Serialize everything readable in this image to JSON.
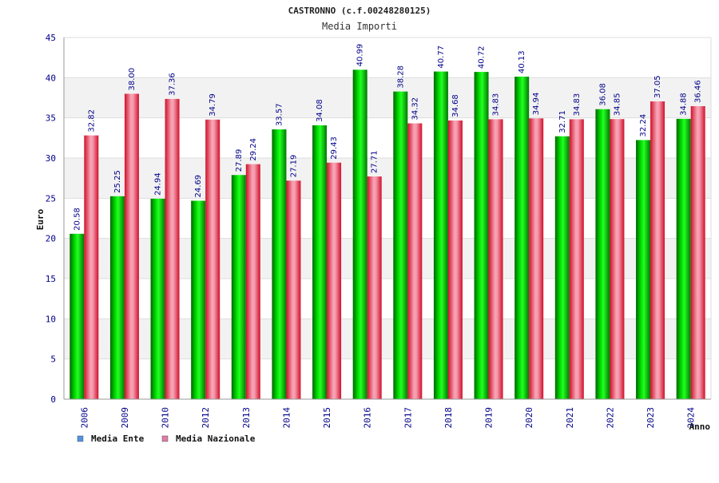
{
  "chart_data": {
    "type": "bar",
    "title": "CASTRONNO (c.f.00248280125)",
    "subtitle": "Media Importi",
    "xlabel": "Anno",
    "ylabel": "Euro",
    "ylim": [
      0,
      45
    ],
    "yticks": [
      "0",
      "5",
      "10",
      "15",
      "20",
      "25",
      "30",
      "35",
      "40",
      "45"
    ],
    "categories": [
      "2006",
      "2009",
      "2010",
      "2012",
      "2013",
      "2014",
      "2015",
      "2016",
      "2017",
      "2018",
      "2019",
      "2020",
      "2021",
      "2022",
      "2023",
      "2024"
    ],
    "series": [
      {
        "name": "Media Ente",
        "color": "#00cc00",
        "legend_color": "#4f94e0",
        "values": [
          20.58,
          25.25,
          24.94,
          24.69,
          27.89,
          33.57,
          34.08,
          40.99,
          38.28,
          40.77,
          40.72,
          40.13,
          32.71,
          36.08,
          32.24,
          34.88
        ],
        "labels": [
          "20.58",
          "25.25",
          "24.94",
          "24.69",
          "27.89",
          "33.57",
          "34.08",
          "40.99",
          "38.28",
          "40.77",
          "40.72",
          "40.13",
          "32.71",
          "36.08",
          "32.24",
          "34.88"
        ]
      },
      {
        "name": "Media Nazionale",
        "color": "#e8283c",
        "legend_color": "#e07aa8",
        "values": [
          32.82,
          38.0,
          37.36,
          34.79,
          29.24,
          27.19,
          29.43,
          27.71,
          34.32,
          34.68,
          34.83,
          34.94,
          34.83,
          34.85,
          37.05,
          36.46
        ],
        "labels": [
          "32.82",
          "38.00",
          "37.36",
          "34.79",
          "29.24",
          "27.19",
          "29.43",
          "27.71",
          "34.32",
          "34.68",
          "34.83",
          "34.94",
          "34.83",
          "34.85",
          "37.05",
          "36.46"
        ]
      }
    ],
    "grid": true,
    "legend_position": "bottom-left"
  }
}
